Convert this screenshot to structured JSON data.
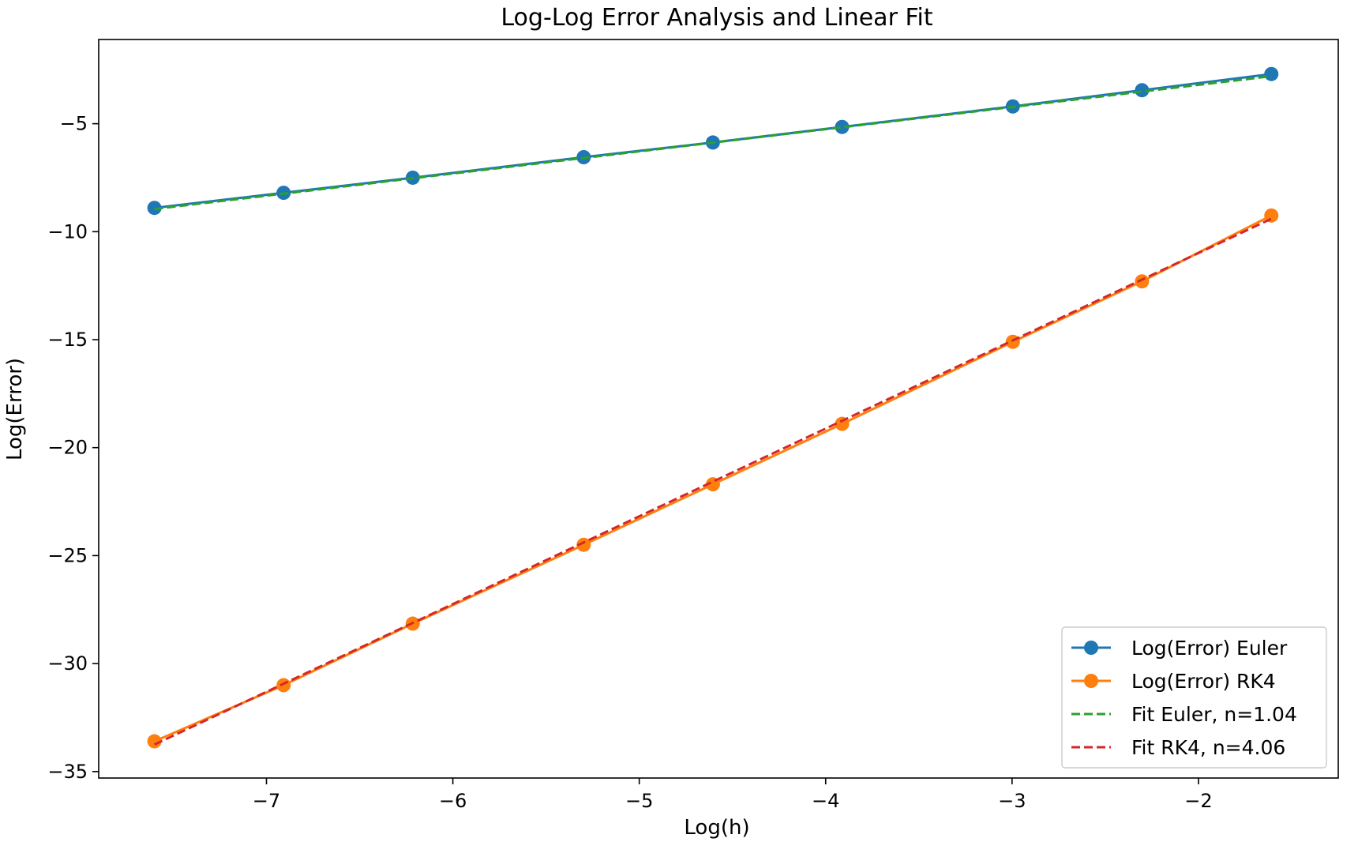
{
  "chart_data": {
    "type": "line",
    "title": "Log-Log Error Analysis and Linear Fit",
    "xlabel": "Log(h)",
    "ylabel": "Log(Error)",
    "xlim": [
      -7.9,
      -1.25
    ],
    "ylim": [
      -35.3,
      -1.1
    ],
    "xticks": [
      -7,
      -6,
      -5,
      -4,
      -3,
      -2
    ],
    "xtick_labels": [
      "−7",
      "−6",
      "−5",
      "−4",
      "−3",
      "−2"
    ],
    "yticks": [
      -5,
      -10,
      -15,
      -20,
      -25,
      -30,
      -35
    ],
    "ytick_labels": [
      "−5",
      "−10",
      "−15",
      "−20",
      "−25",
      "−30",
      "−35"
    ],
    "grid": false,
    "legend_position": "lower-right",
    "series": [
      {
        "name": "Log(Error) Euler",
        "style": "solid-marker",
        "color": "#1f77b4",
        "x": [
          -7.601,
          -6.908,
          -6.215,
          -5.298,
          -4.605,
          -3.912,
          -2.996,
          -2.303,
          -1.609
        ],
        "y": [
          -8.9,
          -8.2,
          -7.5,
          -6.55,
          -5.87,
          -5.15,
          -4.2,
          -3.45,
          -2.7
        ]
      },
      {
        "name": "Log(Error) RK4",
        "style": "solid-marker",
        "color": "#ff7f0e",
        "x": [
          -7.601,
          -6.908,
          -6.215,
          -5.298,
          -4.605,
          -3.912,
          -2.996,
          -2.303,
          -1.609
        ],
        "y": [
          -33.6,
          -31.0,
          -28.15,
          -24.5,
          -21.7,
          -18.9,
          -15.1,
          -12.3,
          -9.25
        ]
      },
      {
        "name": "Fit Euler, n=1.04",
        "style": "dashed",
        "color": "#2ca02c",
        "x": [
          -7.601,
          -1.609
        ],
        "y": [
          -8.95,
          -2.8
        ]
      },
      {
        "name": "Fit RK4, n=4.06",
        "style": "dashed",
        "color": "#d62728",
        "x": [
          -7.601,
          -1.609
        ],
        "y": [
          -33.75,
          -9.4
        ]
      }
    ]
  }
}
